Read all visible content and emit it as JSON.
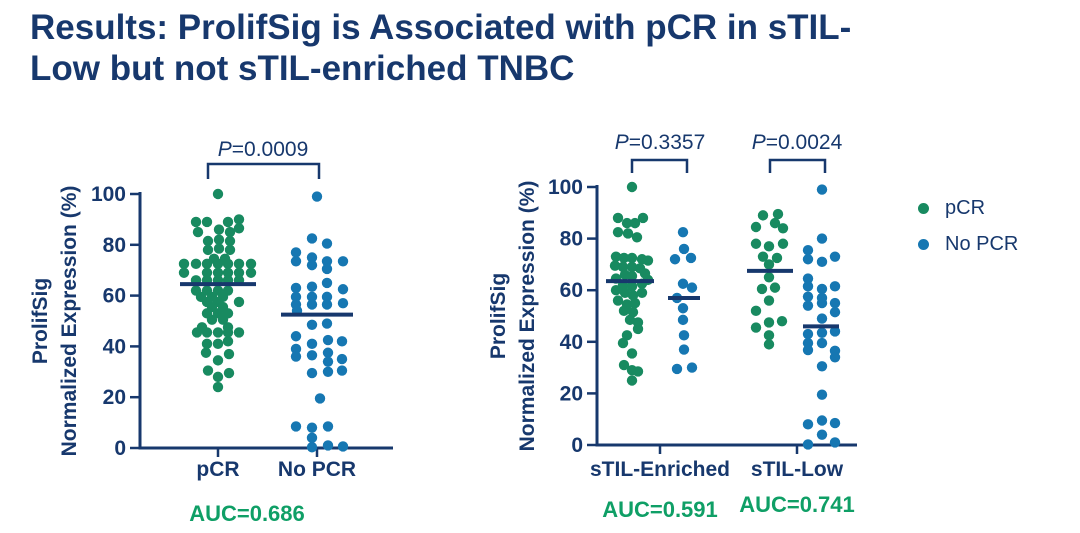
{
  "title": {
    "full": "Results: ProlifSig is Associated with pCR in sTIL-Low but not sTIL-enriched TNBC",
    "line1": "Results: ProlifSig is Associated with pCR in sTIL-",
    "line2": "Low but not sTIL-enriched TNBC"
  },
  "colors": {
    "navy": "#17386d",
    "green_dot": "#188a60",
    "blue_dot": "#1677b2",
    "auc_green": "#0f9f66"
  },
  "chart_data": {
    "type": "scatter",
    "legend": [
      {
        "label": "pCR",
        "color": "#188a60"
      },
      {
        "label": "No PCR",
        "color": "#1677b2"
      }
    ],
    "charts": [
      {
        "ylabel": [
          "ProlifSig",
          "Normalized Expression (%)"
        ],
        "yticks": [
          0,
          20,
          40,
          60,
          80,
          100
        ],
        "ylim": [
          0,
          100
        ],
        "categories": [
          "pCR",
          "No PCR"
        ],
        "comparisons": [
          {
            "p": "P=0.0009"
          }
        ],
        "auc": [
          "AUC=0.686"
        ],
        "clusters": [
          {
            "series": "pCR",
            "median": 64.5,
            "points": [
              [
                0,
                100
              ],
              [
                -22,
                89
              ],
              [
                -11,
                89
              ],
              [
                10,
                89
              ],
              [
                21,
                90
              ],
              [
                -20,
                85
              ],
              [
                1,
                86
              ],
              [
                12,
                85
              ],
              [
                21,
                86.5
              ],
              [
                -10,
                81.5
              ],
              [
                1,
                82
              ],
              [
                12,
                81.5
              ],
              [
                -10,
                78
              ],
              [
                1,
                78.5
              ],
              [
                12,
                78
              ],
              [
                -4,
                74.5
              ],
              [
                7,
                74.5
              ],
              [
                -34,
                72.5
              ],
              [
                -22,
                72.5
              ],
              [
                -11,
                72.5
              ],
              [
                0,
                72.5
              ],
              [
                10,
                72.5
              ],
              [
                21,
                72.5
              ],
              [
                33,
                72.5
              ],
              [
                -34,
                69
              ],
              [
                -11,
                69
              ],
              [
                0,
                69
              ],
              [
                10,
                69
              ],
              [
                21,
                69
              ],
              [
                33,
                69
              ],
              [
                -22,
                66
              ],
              [
                -11,
                66
              ],
              [
                0,
                66
              ],
              [
                10,
                66
              ],
              [
                21,
                66
              ],
              [
                -22,
                62
              ],
              [
                -11,
                62
              ],
              [
                0,
                62
              ],
              [
                10,
                62
              ],
              [
                -17,
                59.5
              ],
              [
                -6,
                59.5
              ],
              [
                5,
                59.5
              ],
              [
                -11,
                57.5
              ],
              [
                0,
                57.5
              ],
              [
                21,
                57.5
              ],
              [
                -6,
                55.5
              ],
              [
                5,
                55.5
              ],
              [
                -11,
                53
              ],
              [
                0,
                53
              ],
              [
                10,
                53
              ],
              [
                -6,
                50.5
              ],
              [
                5,
                50.5
              ],
              [
                -16,
                47.5
              ],
              [
                10,
                47.5
              ],
              [
                -21,
                45.5
              ],
              [
                -11,
                45.5
              ],
              [
                0,
                45.5
              ],
              [
                10,
                45.5
              ],
              [
                21,
                45.5
              ],
              [
                -11,
                41
              ],
              [
                0,
                41
              ],
              [
                10,
                42
              ],
              [
                -12,
                37.5
              ],
              [
                11,
                37
              ],
              [
                0,
                34.5
              ],
              [
                -10,
                30.5
              ],
              [
                11,
                29.5
              ],
              [
                0,
                28
              ],
              [
                0,
                24
              ]
            ]
          },
          {
            "series": "No PCR",
            "median": 52.5,
            "points": [
              [
                0,
                99
              ],
              [
                -5,
                82.5
              ],
              [
                10,
                80.5
              ],
              [
                -21,
                77
              ],
              [
                -5,
                75
              ],
              [
                -21,
                73.5
              ],
              [
                -5,
                72
              ],
              [
                10,
                73.5
              ],
              [
                26,
                73.5
              ],
              [
                10,
                70.5
              ],
              [
                10,
                65
              ],
              [
                -21,
                63
              ],
              [
                -5,
                63.5
              ],
              [
                26,
                62.5
              ],
              [
                -21,
                59.5
              ],
              [
                -5,
                59.5
              ],
              [
                10,
                59.5
              ],
              [
                -21,
                56.5
              ],
              [
                -5,
                56.5
              ],
              [
                10,
                56.5
              ],
              [
                26,
                57
              ],
              [
                -20,
                54
              ],
              [
                -5,
                48.5
              ],
              [
                10,
                49
              ],
              [
                -21,
                44
              ],
              [
                -5,
                41
              ],
              [
                11,
                42.5
              ],
              [
                25,
                42
              ],
              [
                -21,
                39
              ],
              [
                -21,
                36
              ],
              [
                -5,
                36.5
              ],
              [
                11,
                37.5
              ],
              [
                11,
                34
              ],
              [
                25,
                35
              ],
              [
                -5,
                29.5
              ],
              [
                11,
                30
              ],
              [
                25,
                30.5
              ],
              [
                3,
                19.5
              ],
              [
                -21,
                8.5
              ],
              [
                -5,
                8
              ],
              [
                11,
                8.5
              ],
              [
                -5,
                4
              ],
              [
                -5,
                0.3
              ],
              [
                11,
                1
              ],
              [
                26,
                0.6
              ]
            ]
          }
        ]
      },
      {
        "ylabel": [
          "ProlifSig",
          "Normalized Expression (%)"
        ],
        "yticks": [
          0,
          20,
          40,
          60,
          80,
          100
        ],
        "ylim": [
          0,
          100
        ],
        "categories": [
          "sTIL-Enriched",
          "sTIL-Low"
        ],
        "comparisons": [
          {
            "p": "P=0.3357"
          },
          {
            "p": "P=0.0024"
          }
        ],
        "auc": [
          "AUC=0.591",
          "AUC=0.741"
        ],
        "clusters": [
          {
            "series": "pCR",
            "median": 63.5,
            "points": [
              [
                2,
                100
              ],
              [
                -12,
                88
              ],
              [
                13,
                88
              ],
              [
                -3,
                86
              ],
              [
                5,
                86
              ],
              [
                -12,
                82.5
              ],
              [
                -2,
                82
              ],
              [
                7,
                80.5
              ],
              [
                -14,
                73
              ],
              [
                -6,
                72.5
              ],
              [
                2,
                72.5
              ],
              [
                12,
                72
              ],
              [
                18,
                71.5
              ],
              [
                -15,
                69.5
              ],
              [
                -7,
                69
              ],
              [
                2,
                69
              ],
              [
                10,
                68.5
              ],
              [
                -5,
                66
              ],
              [
                2,
                65.5
              ],
              [
                15,
                66.5
              ],
              [
                -14,
                64.5
              ],
              [
                18,
                64
              ],
              [
                -7,
                62
              ],
              [
                2,
                61.5
              ],
              [
                12,
                62.5
              ],
              [
                -14,
                60
              ],
              [
                -5,
                59
              ],
              [
                3,
                58
              ],
              [
                12,
                59
              ],
              [
                -12,
                56
              ],
              [
                -3,
                54.5
              ],
              [
                5,
                55
              ],
              [
                -6,
                52
              ],
              [
                3,
                51.5
              ],
              [
                0,
                48.5
              ],
              [
                8,
                47.5
              ],
              [
                8,
                45
              ],
              [
                -3,
                42.5
              ],
              [
                -7,
                39.5
              ],
              [
                2,
                35.5
              ],
              [
                -6,
                31
              ],
              [
                2,
                29
              ],
              [
                8,
                28.5
              ],
              [
                2,
                25
              ]
            ]
          },
          {
            "series": "No PCR",
            "median": 57,
            "points": [
              [
                -1,
                82.5
              ],
              [
                0,
                76
              ],
              [
                -9,
                72
              ],
              [
                7,
                72.5
              ],
              [
                -1,
                62.5
              ],
              [
                8,
                61
              ],
              [
                -7,
                57
              ],
              [
                -1,
                53
              ],
              [
                -1,
                48.5
              ],
              [
                0,
                42.5
              ],
              [
                0,
                37
              ],
              [
                -7,
                29.5
              ],
              [
                8,
                30
              ]
            ]
          },
          {
            "series": "pCR",
            "median": 67.5,
            "points": [
              [
                -7,
                89
              ],
              [
                8,
                89.5
              ],
              [
                -14,
                84.5
              ],
              [
                5,
                86
              ],
              [
                13,
                84
              ],
              [
                -14,
                78
              ],
              [
                -1,
                77
              ],
              [
                13,
                78
              ],
              [
                -7,
                73
              ],
              [
                7,
                72.5
              ],
              [
                -1,
                70
              ],
              [
                -1,
                65
              ],
              [
                -8,
                60.5
              ],
              [
                5,
                61
              ],
              [
                -1,
                56
              ],
              [
                -14,
                52
              ],
              [
                12,
                48
              ],
              [
                -1,
                47.5
              ],
              [
                -14,
                45.5
              ],
              [
                -1,
                42.5
              ],
              [
                -1,
                39
              ]
            ]
          },
          {
            "series": "No PCR",
            "median": 46,
            "points": [
              [
                1,
                99
              ],
              [
                1,
                80
              ],
              [
                -13,
                75.5
              ],
              [
                14,
                73
              ],
              [
                -13,
                72
              ],
              [
                1,
                71
              ],
              [
                -13,
                64.5
              ],
              [
                -13,
                61.5
              ],
              [
                1,
                60.5
              ],
              [
                14,
                61.5
              ],
              [
                -13,
                57.5
              ],
              [
                1,
                57
              ],
              [
                -13,
                54
              ],
              [
                1,
                55
              ],
              [
                14,
                55
              ],
              [
                14,
                51.5
              ],
              [
                1,
                49
              ],
              [
                -13,
                43
              ],
              [
                1,
                43.5
              ],
              [
                14,
                44
              ],
              [
                -13,
                39.5
              ],
              [
                1,
                39.5
              ],
              [
                -13,
                36.8
              ],
              [
                14,
                36.5
              ],
              [
                14,
                34
              ],
              [
                1,
                30.5
              ],
              [
                1,
                19.5
              ],
              [
                -13,
                8
              ],
              [
                1,
                9.5
              ],
              [
                14,
                8.5
              ],
              [
                1,
                4
              ],
              [
                -13,
                0.2
              ],
              [
                14,
                1
              ]
            ]
          }
        ]
      }
    ]
  }
}
